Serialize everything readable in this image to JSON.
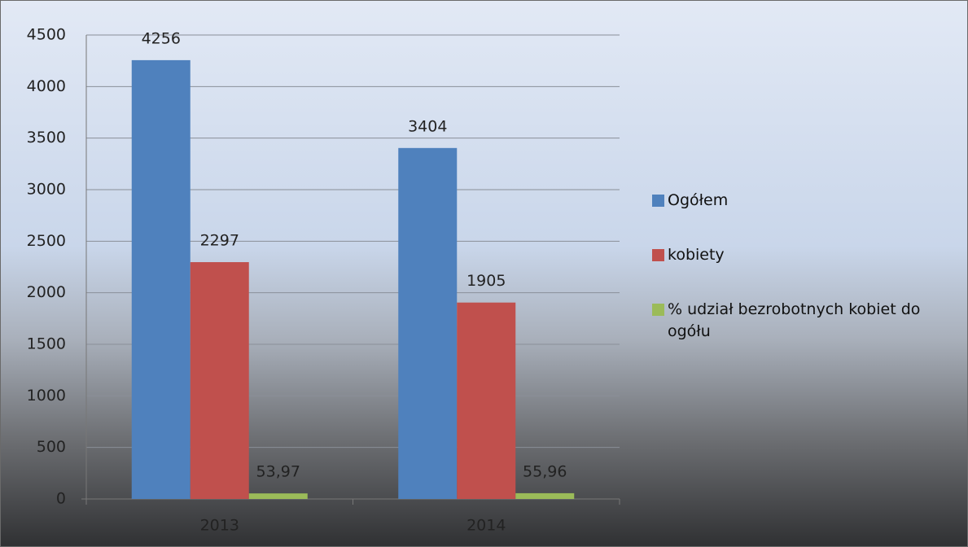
{
  "chart_data": {
    "type": "bar",
    "categories": [
      "2013",
      "2014"
    ],
    "series": [
      {
        "name": "Ogółem",
        "color": "#4f81bd",
        "values": [
          4256,
          3404
        ]
      },
      {
        "name": "kobiety",
        "color": "#c0504d",
        "values": [
          2297,
          1905
        ]
      },
      {
        "name": "% udział bezrobotnych kobiet do ogółu",
        "color": "#9bbb59",
        "values": [
          53.97,
          55.96
        ],
        "value_labels": [
          "53,97",
          "55,96"
        ]
      }
    ],
    "ylim": [
      0,
      4500
    ],
    "yticks": [
      0,
      500,
      1000,
      1500,
      2000,
      2500,
      3000,
      3500,
      4000,
      4500
    ],
    "grid": true,
    "legend": "right"
  }
}
